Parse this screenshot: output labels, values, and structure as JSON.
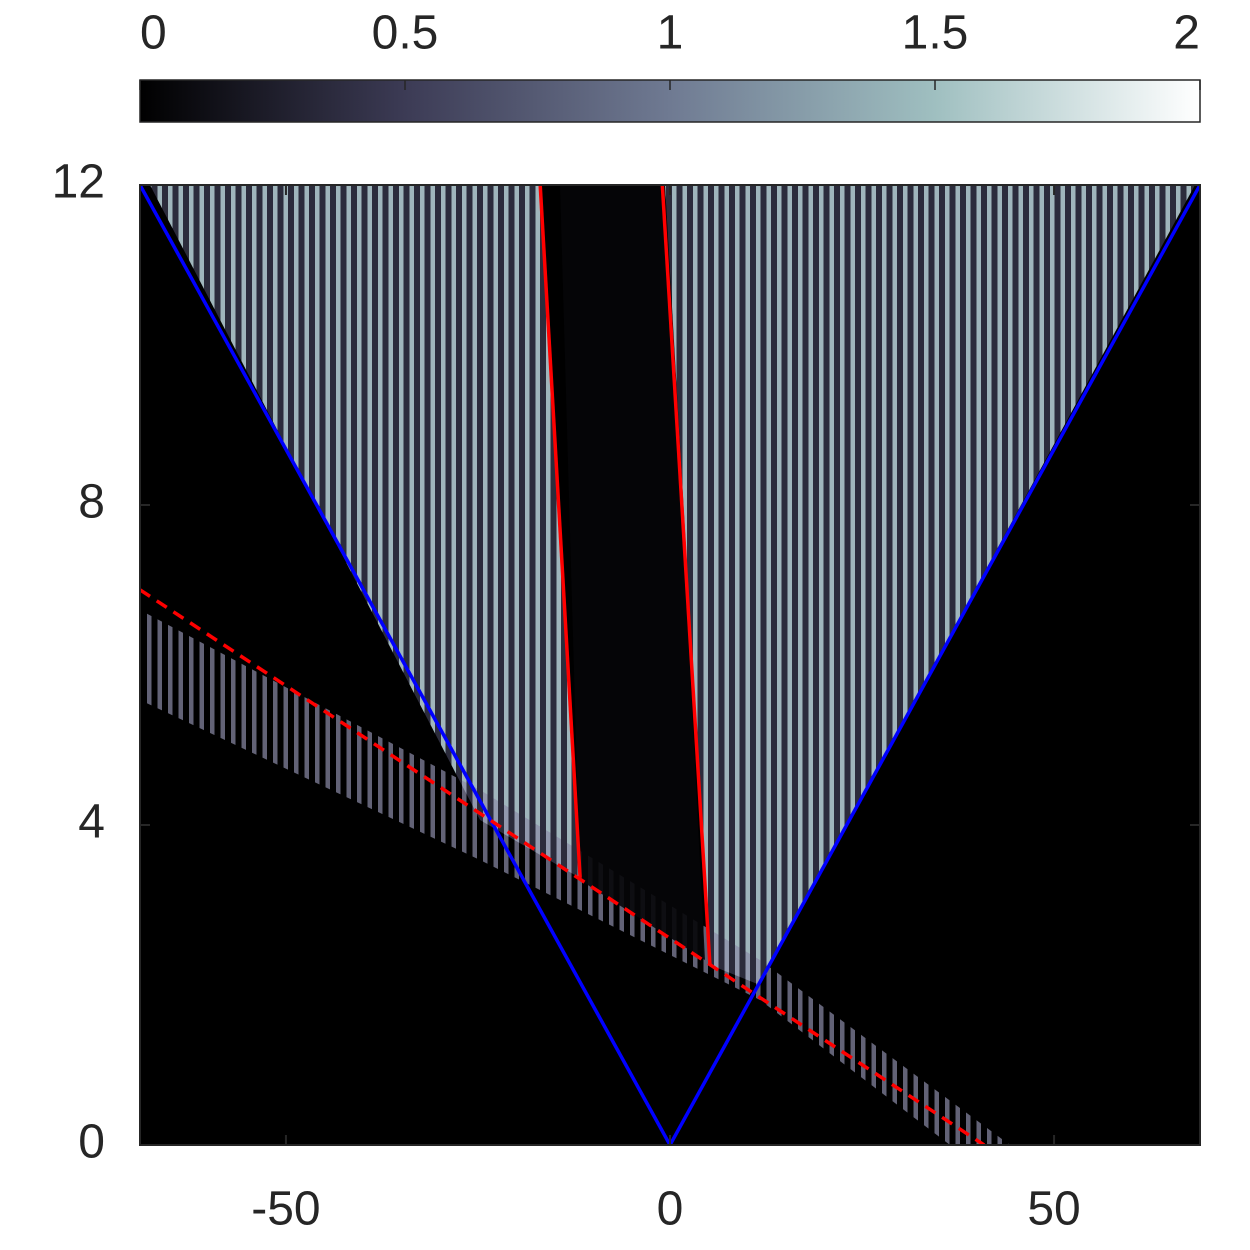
{
  "chart_data": {
    "type": "heatmap",
    "xlim": [
      -69,
      69
    ],
    "ylim": [
      0,
      12
    ],
    "xticks": [
      -50,
      0,
      50
    ],
    "yticks": [
      0,
      4,
      8,
      12
    ],
    "colorbar": {
      "lim": [
        0,
        2
      ],
      "ticks": [
        0,
        {
          "value": 0.5,
          "label": "0.5"
        },
        1,
        {
          "value": 1.5,
          "label": "1.5"
        },
        2
      ],
      "colormap": [
        "#000000",
        "#3c3b55",
        "#6f7a92",
        "#9fbfc0",
        "#ffffff"
      ],
      "position": "top"
    },
    "series": [
      {
        "color": "#0000ff",
        "style": "solid",
        "x": [
          -69,
          0,
          69
        ],
        "values": [
          12,
          0,
          12
        ]
      },
      {
        "color": "#ff0000",
        "style": "dashed",
        "x": [
          -69,
          40.9
        ],
        "values": [
          6.94,
          0
        ]
      },
      {
        "color": "#ff0000",
        "style": "solid",
        "x": [
          -16.9,
          -11.7
        ],
        "values": [
          12,
          3.34
        ]
      },
      {
        "color": "#ff0000",
        "style": "solid",
        "x": [
          -1.0,
          5.2
        ],
        "values": [
          12,
          2.25
        ]
      }
    ]
  }
}
